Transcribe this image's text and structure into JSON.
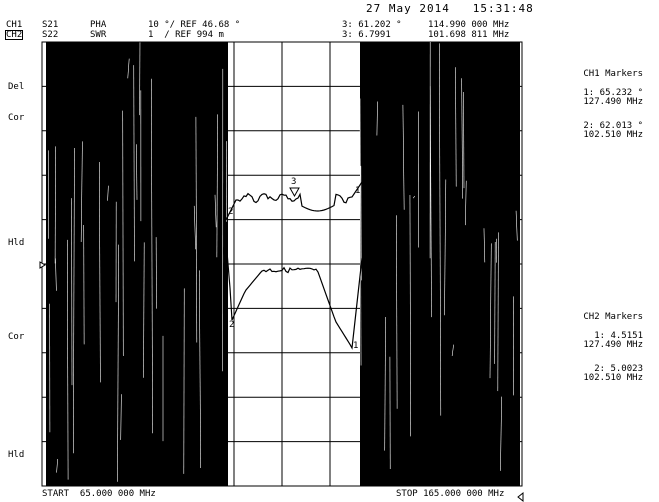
{
  "header": {
    "date": "27 May 2014   15:31:48",
    "ch1": {
      "channel": "CH1",
      "param": "S21",
      "format": "PHA",
      "scale": "10 °/ REF 46.68 °",
      "marker": "3: 61.202 °",
      "freq": "114.990 000 MHz"
    },
    "ch2": {
      "channel": "CH2",
      "param": "S22",
      "format": "SWR",
      "scale": "1  / REF 994 m",
      "marker": "3: 6.7991",
      "freq": "101.698 811 MHz"
    }
  },
  "side_labels": {
    "del": "Del",
    "cor1": "Cor",
    "hld1": "Hld",
    "cor2": "Cor",
    "hld2": "Hld"
  },
  "ch1_markers": {
    "title": "CH1 Markers",
    "m1_value": "1: 65.232 °",
    "m1_freq": "127.490 MHz",
    "m2_value": "2: 62.013 °",
    "m2_freq": "102.510 MHz"
  },
  "ch2_markers": {
    "title": "CH2 Markers",
    "m1_value": "1: 4.5151",
    "m1_freq": "127.490 MHz",
    "m2_value": "2: 5.0023",
    "m2_freq": "102.510 MHz"
  },
  "footer": {
    "start": "START  65.000 000 MHz",
    "stop": "STOP 165.000 000 MHz"
  },
  "marker_tags": {
    "ch1_m1": "1",
    "ch1_m2": "2",
    "ch1_m3": "3",
    "ch2_m1": "1",
    "ch2_m2": "2"
  },
  "colors": {
    "trace": "#000000",
    "background": "#ffffff",
    "grid": "#000000"
  }
}
